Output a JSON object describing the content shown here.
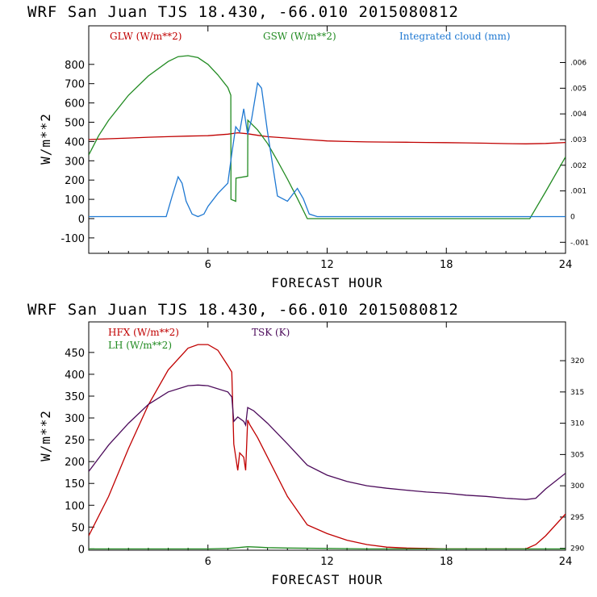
{
  "chart_data": [
    {
      "type": "line",
      "title": "WRF  San Juan TJS  18.430, -66.010  2015080812",
      "xlabel": "FORECAST HOUR",
      "ylabel": "W/m**2",
      "xlim": [
        0,
        24
      ],
      "ylim": [
        -180,
        1000
      ],
      "x_ticks": [
        6,
        12,
        18,
        24
      ],
      "y_ticks": [
        -100,
        0,
        100,
        200,
        300,
        400,
        500,
        600,
        700,
        800
      ],
      "y2lim": [
        -0.00143,
        0.00743
      ],
      "y2_ticks": [
        -0.001,
        0,
        0.001,
        0.002,
        0.003,
        0.004,
        0.005,
        0.006
      ],
      "y2_tick_labels": [
        "-.001",
        "0",
        ".001",
        ".002",
        ".003",
        ".004",
        ".005",
        ".006"
      ],
      "series": [
        {
          "name": "GLW (W/m**2)",
          "color": "#c00000",
          "axis": "left",
          "x": [
            0,
            1,
            2,
            3,
            4,
            5,
            6,
            7,
            7.5,
            8,
            8.5,
            9,
            10,
            11,
            12,
            13,
            14,
            15,
            16,
            17,
            18,
            19,
            20,
            21,
            22,
            23,
            24
          ],
          "y": [
            410,
            414,
            418,
            422,
            425,
            428,
            430,
            438,
            445,
            440,
            432,
            425,
            418,
            410,
            403,
            400,
            398,
            397,
            396,
            395,
            394,
            393,
            391,
            389,
            388,
            390,
            395
          ]
        },
        {
          "name": "GSW (W/m**2)",
          "color": "#228b22",
          "axis": "left",
          "x": [
            0,
            0.5,
            1,
            2,
            3,
            4,
            4.5,
            5,
            5.5,
            6,
            6.5,
            7,
            7.15,
            7.16,
            7.4,
            7.41,
            8,
            8.01,
            8.5,
            9,
            9.5,
            10,
            10.5,
            11,
            12,
            13,
            14,
            15,
            16,
            17,
            18,
            19,
            20,
            21,
            22,
            22.2,
            23,
            24
          ],
          "y": [
            330,
            430,
            510,
            640,
            740,
            815,
            840,
            845,
            835,
            800,
            745,
            680,
            640,
            100,
            90,
            210,
            220,
            510,
            460,
            390,
            300,
            205,
            105,
            0,
            0,
            0,
            0,
            0,
            0,
            0,
            0,
            0,
            0,
            0,
            0,
            0,
            140,
            320
          ]
        },
        {
          "name": "Integrated cloud (mm)",
          "color": "#1e78d2",
          "axis": "right",
          "x": [
            0,
            1,
            2,
            3,
            3.9,
            4.2,
            4.5,
            4.7,
            4.9,
            5.2,
            5.5,
            5.8,
            6,
            6.5,
            7,
            7.2,
            7.4,
            7.6,
            7.8,
            8.0,
            8.2,
            8.5,
            8.7,
            9,
            9.5,
            10,
            10.5,
            10.8,
            11.1,
            11.5,
            12,
            13,
            14,
            15,
            16,
            17,
            18,
            19,
            20,
            21,
            22,
            23,
            24
          ],
          "y": [
            0,
            0,
            0,
            0,
            0,
            0.0008,
            0.00155,
            0.0013,
            0.0006,
            0.0001,
            0,
            0.0001,
            0.0004,
            0.0009,
            0.0013,
            0.00245,
            0.0035,
            0.0033,
            0.0042,
            0.0032,
            0.0038,
            0.0052,
            0.005,
            0.0033,
            0.0008,
            0.0006,
            0.0011,
            0.0007,
            0.0001,
            0,
            0,
            0,
            0,
            0,
            0,
            0,
            0,
            0,
            0,
            0,
            0,
            0,
            0
          ]
        }
      ]
    },
    {
      "type": "line",
      "title": "WRF  San Juan TJS  18.430, -66.010  2015080812",
      "xlabel": "FORECAST HOUR",
      "ylabel": "W/m**2",
      "xlim": [
        0,
        24
      ],
      "ylim": [
        -3,
        520
      ],
      "x_ticks": [
        6,
        12,
        18,
        24
      ],
      "y_ticks": [
        0,
        50,
        100,
        150,
        200,
        250,
        300,
        350,
        400,
        450
      ],
      "y2lim": [
        289.7,
        326.2
      ],
      "y2_ticks": [
        290,
        295,
        300,
        305,
        310,
        315,
        320
      ],
      "y2_tick_labels": [
        "290",
        "295",
        "300",
        "305",
        "310",
        "315",
        "320"
      ],
      "series": [
        {
          "name": "HFX (W/m**2)",
          "color": "#c00000",
          "axis": "left",
          "x": [
            0,
            1,
            2,
            3,
            4,
            5,
            5.5,
            6,
            6.5,
            7,
            7.2,
            7.3,
            7.5,
            7.6,
            7.8,
            7.9,
            8.0,
            8.1,
            8.5,
            9,
            10,
            11,
            12,
            13,
            14,
            15,
            16,
            17,
            18,
            19,
            20,
            21,
            22,
            22.5,
            23,
            24
          ],
          "y": [
            30,
            120,
            230,
            330,
            410,
            460,
            468,
            468,
            455,
            420,
            405,
            240,
            180,
            220,
            210,
            180,
            295,
            285,
            255,
            210,
            120,
            55,
            35,
            20,
            10,
            4,
            2,
            1,
            0,
            0,
            0,
            0,
            0,
            10,
            30,
            80
          ]
        },
        {
          "name": "LH (W/m**2)",
          "color": "#228b22",
          "axis": "left",
          "x": [
            0,
            2,
            4,
            6,
            7,
            7.5,
            8,
            8.5,
            9,
            10,
            12,
            14,
            18,
            22,
            24
          ],
          "y": [
            0,
            0,
            0,
            0,
            1,
            3,
            5,
            4,
            3,
            2,
            1,
            0,
            0,
            0,
            0
          ]
        },
        {
          "name": "TSK (K)",
          "color": "#4b0a5a",
          "axis": "right",
          "x": [
            0,
            1,
            2,
            3,
            4,
            5,
            5.5,
            6,
            7,
            7.2,
            7.3,
            7.5,
            7.8,
            7.9,
            8.0,
            8.3,
            9,
            10,
            11,
            12,
            13,
            14,
            15,
            16,
            17,
            18,
            19,
            20,
            21,
            22,
            22.5,
            23,
            24
          ],
          "y": [
            302.3,
            306.5,
            310,
            313,
            315,
            316,
            316.1,
            316,
            315,
            314.2,
            310.3,
            311,
            310.3,
            309.7,
            312.5,
            312,
            310,
            306.7,
            303.3,
            301.7,
            300.7,
            300,
            299.6,
            299.3,
            299,
            298.8,
            298.5,
            298.3,
            298,
            297.8,
            298,
            299.5,
            302
          ]
        }
      ]
    }
  ]
}
